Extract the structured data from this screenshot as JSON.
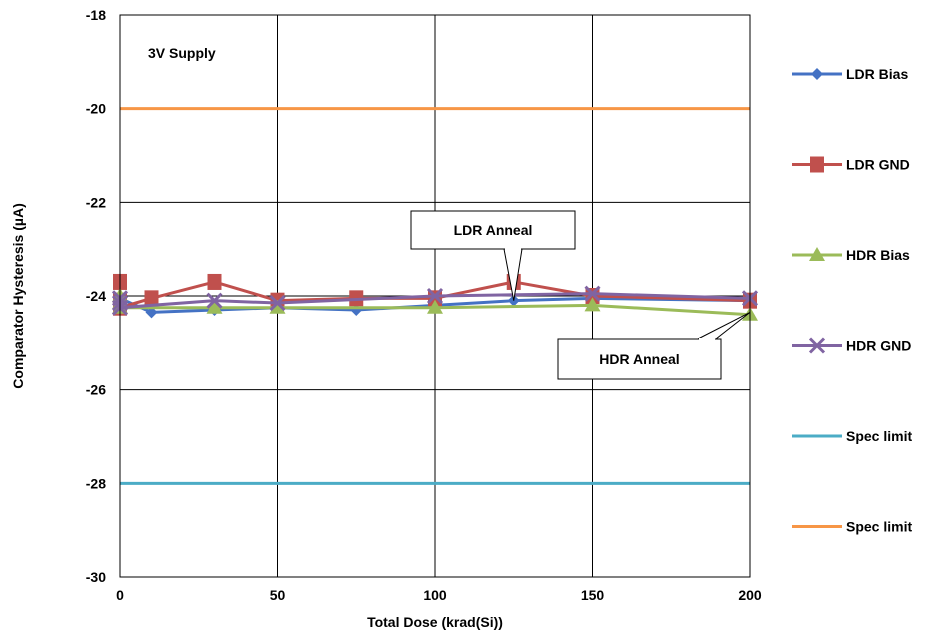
{
  "chart_data": {
    "type": "line",
    "title": "",
    "xlabel": "Total Dose (krad(Si))",
    "ylabel": "Comparator Hysteresis (µA)",
    "xlim": [
      0,
      200
    ],
    "ylim": [
      -30,
      -18
    ],
    "x_ticks": [
      0,
      50,
      100,
      150,
      200
    ],
    "y_ticks": [
      -30,
      -28,
      -26,
      -24,
      -22,
      -20,
      -18
    ],
    "grid": true,
    "legend_position": "right",
    "annotations": [
      {
        "text": "3V Supply"
      },
      {
        "text": "LDR Anneal",
        "points_to": [
          125,
          -24.1
        ]
      },
      {
        "text": "HDR Anneal",
        "points_to": [
          200,
          -24.35
        ]
      }
    ],
    "series": [
      {
        "name": "LDR Bias",
        "color": "#4472C4",
        "marker": "diamond",
        "x": [
          0,
          0,
          0,
          10,
          30,
          50,
          75,
          100,
          125,
          150,
          200
        ],
        "y": [
          -24.25,
          -24.15,
          -24.05,
          -24.35,
          -24.3,
          -24.25,
          -24.3,
          -24.2,
          -24.1,
          -24.05,
          -24.1
        ]
      },
      {
        "name": "LDR GND",
        "color": "#C0504D",
        "marker": "square",
        "x": [
          0,
          0,
          0,
          10,
          30,
          50,
          75,
          100,
          125,
          150,
          200
        ],
        "y": [
          -23.7,
          -24.1,
          -24.25,
          -24.05,
          -23.7,
          -24.1,
          -24.05,
          -24.05,
          -23.7,
          -24.0,
          -24.1
        ]
      },
      {
        "name": "HDR Bias",
        "color": "#9BBB59",
        "marker": "triangle",
        "x": [
          0,
          0,
          0,
          30,
          50,
          100,
          150,
          200
        ],
        "y": [
          -24.0,
          -24.15,
          -24.25,
          -24.25,
          -24.25,
          -24.25,
          -24.2,
          -24.4
        ]
      },
      {
        "name": "HDR GND",
        "color": "#8064A2",
        "marker": "x",
        "x": [
          0,
          0,
          0,
          30,
          50,
          100,
          150,
          200
        ],
        "y": [
          -24.05,
          -24.15,
          -24.25,
          -24.1,
          -24.15,
          -24.0,
          -23.95,
          -24.05
        ]
      },
      {
        "name": "Spec limit",
        "color": "#4BACC6",
        "marker": "none",
        "x": [
          0,
          200
        ],
        "y": [
          -28,
          -28
        ]
      },
      {
        "name": "Spec limit",
        "color": "#F79646",
        "marker": "none",
        "x": [
          0,
          200
        ],
        "y": [
          -20,
          -20
        ]
      }
    ]
  }
}
